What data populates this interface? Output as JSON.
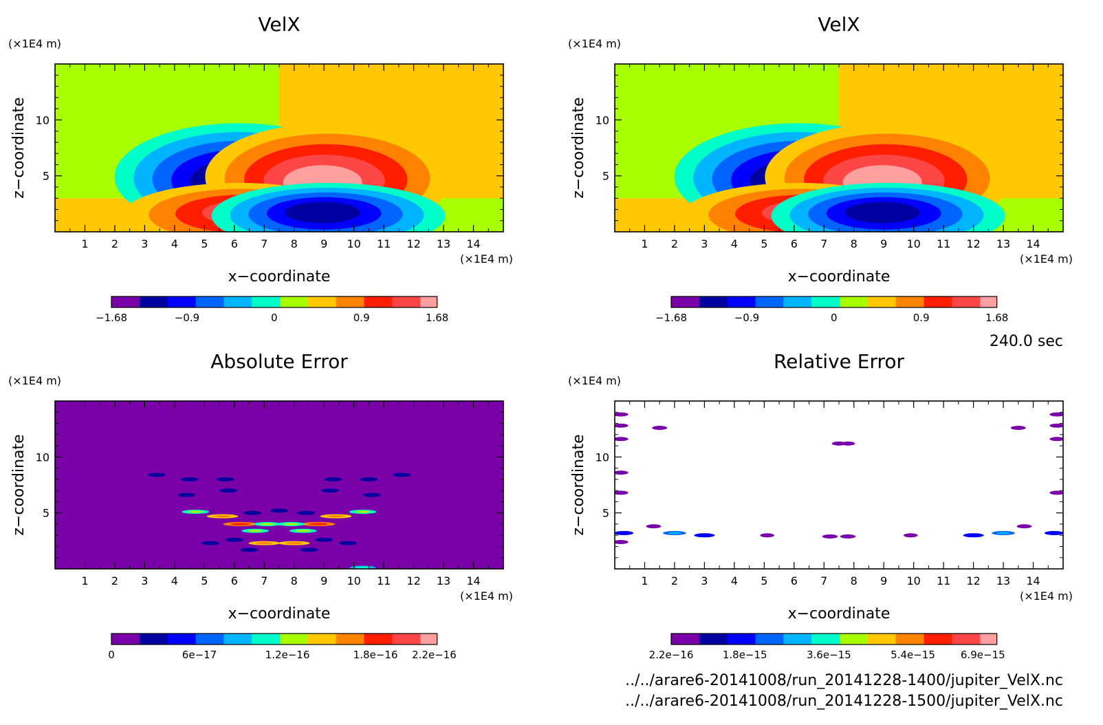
{
  "figure": {
    "time_label": "240.0 sec",
    "file_lines": [
      "../../arare6-20141008/run_20141228-1400/jupiter_VelX.nc",
      "../../arare6-20141008/run_20141228-1500/jupiter_VelX.nc"
    ]
  },
  "colors": {
    "scale": [
      "#7a00a8",
      "#0000a0",
      "#0000ff",
      "#0064ff",
      "#00b4ff",
      "#00ffc8",
      "#a8ff00",
      "#ffc800",
      "#ff8200",
      "#ff1e00",
      "#ff4646",
      "#ffa0a0"
    ],
    "background": "#ffffff",
    "frame": "#000000"
  },
  "chart_data": [
    {
      "type": "heatmap",
      "title": "VelX",
      "xlabel": "x−coordinate",
      "ylabel": "z−coordinate",
      "x_unit": "(×1E4 m)",
      "y_unit": "(×1E4 m)",
      "xlim": [
        0,
        15
      ],
      "ylim": [
        0,
        15
      ],
      "xticks": [
        "1",
        "2",
        "3",
        "4",
        "5",
        "6",
        "7",
        "8",
        "9",
        "10",
        "11",
        "12",
        "13",
        "14"
      ],
      "yticks": [
        "5",
        "10"
      ],
      "colorbar": {
        "labels": [
          "−1.68",
          "−0.9",
          "0",
          "0.9",
          "1.68"
        ],
        "values": [
          -1.68,
          -0.9,
          0,
          0.9,
          1.68
        ],
        "range": [
          -1.68,
          1.68
        ]
      },
      "field": {
        "upper_left_value": 0.0,
        "upper_right_value": 0.3,
        "lower_left_value": 0.3,
        "lower_right_value": 0.0,
        "interface_z": 3.0,
        "divide_x": 7.5,
        "extrema": [
          {
            "x": 6.4,
            "z": 4.3,
            "value": -1.68
          },
          {
            "x": 8.9,
            "z": 4.3,
            "value": 1.68
          },
          {
            "x": 6.4,
            "z": 1.8,
            "value": 1.25
          },
          {
            "x": 8.9,
            "z": 1.8,
            "value": -1.25
          }
        ]
      }
    },
    {
      "type": "heatmap",
      "title": "VelX",
      "xlabel": "x−coordinate",
      "ylabel": "z−coordinate",
      "x_unit": "(×1E4 m)",
      "y_unit": "(×1E4 m)",
      "xlim": [
        0,
        15
      ],
      "ylim": [
        0,
        15
      ],
      "xticks": [
        "1",
        "2",
        "3",
        "4",
        "5",
        "6",
        "7",
        "8",
        "9",
        "10",
        "11",
        "12",
        "13",
        "14"
      ],
      "yticks": [
        "5",
        "10"
      ],
      "colorbar": {
        "labels": [
          "−1.68",
          "−0.9",
          "0",
          "0.9",
          "1.68"
        ],
        "values": [
          -1.68,
          -0.9,
          0,
          0.9,
          1.68
        ],
        "range": [
          -1.68,
          1.68
        ]
      },
      "field": {
        "upper_left_value": 0.0,
        "upper_right_value": 0.3,
        "lower_left_value": 0.3,
        "lower_right_value": 0.0,
        "interface_z": 3.0,
        "divide_x": 7.5,
        "extrema": [
          {
            "x": 6.4,
            "z": 4.3,
            "value": -1.68
          },
          {
            "x": 8.9,
            "z": 4.3,
            "value": 1.68
          },
          {
            "x": 6.4,
            "z": 1.8,
            "value": 1.25
          },
          {
            "x": 8.9,
            "z": 1.8,
            "value": -1.25
          }
        ]
      }
    },
    {
      "type": "heatmap",
      "title": "Absolute Error",
      "xlabel": "x−coordinate",
      "ylabel": "z−coordinate",
      "x_unit": "(×1E4 m)",
      "y_unit": "(×1E4 m)",
      "xlim": [
        0,
        15
      ],
      "ylim": [
        0,
        15
      ],
      "xticks": [
        "1",
        "2",
        "3",
        "4",
        "5",
        "6",
        "7",
        "8",
        "9",
        "10",
        "11",
        "12",
        "13",
        "14"
      ],
      "yticks": [
        "5",
        "10"
      ],
      "colorbar": {
        "labels": [
          "0",
          "6e−17",
          "1.2e−16",
          "1.8e−16",
          "2.2e−16"
        ],
        "values": [
          0,
          6e-17,
          1.2e-16,
          1.8e-16,
          2.2e-16
        ],
        "range": [
          0,
          2.22e-16
        ]
      },
      "field": {
        "background_value": 0,
        "spots": [
          {
            "x": 3.4,
            "z": 8.4,
            "value": 3e-17
          },
          {
            "x": 4.5,
            "z": 8.0,
            "value": 3e-17
          },
          {
            "x": 5.7,
            "z": 8.0,
            "value": 3e-17
          },
          {
            "x": 9.3,
            "z": 8.0,
            "value": 3e-17
          },
          {
            "x": 10.5,
            "z": 8.0,
            "value": 3e-17
          },
          {
            "x": 11.6,
            "z": 8.4,
            "value": 3e-17
          },
          {
            "x": 4.4,
            "z": 6.6,
            "value": 3e-17
          },
          {
            "x": 5.8,
            "z": 7.0,
            "value": 3e-17
          },
          {
            "x": 9.2,
            "z": 7.0,
            "value": 3e-17
          },
          {
            "x": 10.6,
            "z": 6.6,
            "value": 3e-17
          },
          {
            "x": 4.7,
            "z": 5.1,
            "value": 1e-16
          },
          {
            "x": 10.3,
            "z": 5.1,
            "value": 1e-16
          },
          {
            "x": 6.6,
            "z": 5.0,
            "value": 3e-17
          },
          {
            "x": 7.5,
            "z": 5.2,
            "value": 3e-17
          },
          {
            "x": 8.4,
            "z": 5.0,
            "value": 3e-17
          },
          {
            "x": 5.6,
            "z": 4.7,
            "value": 1.3e-16
          },
          {
            "x": 9.4,
            "z": 4.7,
            "value": 1.3e-16
          },
          {
            "x": 6.2,
            "z": 4.0,
            "value": 1.5e-16
          },
          {
            "x": 8.8,
            "z": 4.0,
            "value": 1.5e-16
          },
          {
            "x": 7.1,
            "z": 4.0,
            "value": 1e-16
          },
          {
            "x": 7.9,
            "z": 4.0,
            "value": 1e-16
          },
          {
            "x": 6.7,
            "z": 3.4,
            "value": 1e-16
          },
          {
            "x": 8.3,
            "z": 3.4,
            "value": 1e-16
          },
          {
            "x": 6.0,
            "z": 2.6,
            "value": 3e-17
          },
          {
            "x": 9.0,
            "z": 2.6,
            "value": 3e-17
          },
          {
            "x": 7.0,
            "z": 2.3,
            "value": 1.3e-16
          },
          {
            "x": 8.0,
            "z": 2.3,
            "value": 1.3e-16
          },
          {
            "x": 5.2,
            "z": 2.3,
            "value": 3e-17
          },
          {
            "x": 9.8,
            "z": 2.3,
            "value": 3e-17
          },
          {
            "x": 6.5,
            "z": 1.7,
            "value": 3e-17
          },
          {
            "x": 8.5,
            "z": 1.7,
            "value": 3e-17
          },
          {
            "x": 10.3,
            "z": 0.1,
            "value": 9e-17
          }
        ]
      }
    },
    {
      "type": "heatmap",
      "title": "Relative Error",
      "xlabel": "x−coordinate",
      "ylabel": "z−coordinate",
      "x_unit": "(×1E4 m)",
      "y_unit": "(×1E4 m)",
      "xlim": [
        0,
        15
      ],
      "ylim": [
        0,
        15
      ],
      "xticks": [
        "1",
        "2",
        "3",
        "4",
        "5",
        "6",
        "7",
        "8",
        "9",
        "10",
        "11",
        "12",
        "13",
        "14"
      ],
      "yticks": [
        "5",
        "10"
      ],
      "colorbar": {
        "labels": [
          "2.2e−16",
          "1.8e−15",
          "3.6e−15",
          "5.4e−15",
          "6.9e−15"
        ],
        "values": [
          2.2e-16,
          1.8e-15,
          3.6e-15,
          5.4e-15,
          6.9e-15
        ],
        "range": [
          2.2e-16,
          7.2e-15
        ]
      },
      "field": {
        "background_value": null,
        "spots": [
          {
            "x": 0.2,
            "z": 13.8,
            "value": 5e-16
          },
          {
            "x": 0.2,
            "z": 12.8,
            "value": 5e-16
          },
          {
            "x": 0.2,
            "z": 11.6,
            "value": 5e-16
          },
          {
            "x": 14.8,
            "z": 13.8,
            "value": 5e-16
          },
          {
            "x": 14.8,
            "z": 12.8,
            "value": 5e-16
          },
          {
            "x": 14.8,
            "z": 11.6,
            "value": 5e-16
          },
          {
            "x": 1.5,
            "z": 12.6,
            "value": 5e-16
          },
          {
            "x": 13.5,
            "z": 12.6,
            "value": 5e-16
          },
          {
            "x": 0.2,
            "z": 8.6,
            "value": 5e-16
          },
          {
            "x": 0.2,
            "z": 6.8,
            "value": 5e-16
          },
          {
            "x": 14.8,
            "z": 6.8,
            "value": 5e-16
          },
          {
            "x": 7.5,
            "z": 11.2,
            "value": 3e-16
          },
          {
            "x": 7.8,
            "z": 11.2,
            "value": 3e-16
          },
          {
            "x": 0.3,
            "z": 3.2,
            "value": 1.5e-15
          },
          {
            "x": 14.7,
            "z": 3.2,
            "value": 1.5e-15
          },
          {
            "x": 1.3,
            "z": 3.8,
            "value": 5e-16
          },
          {
            "x": 13.7,
            "z": 3.8,
            "value": 5e-16
          },
          {
            "x": 2.0,
            "z": 3.2,
            "value": 2.4e-15
          },
          {
            "x": 13.0,
            "z": 3.2,
            "value": 2.4e-15
          },
          {
            "x": 3.0,
            "z": 3.0,
            "value": 1.8e-15
          },
          {
            "x": 12.0,
            "z": 3.0,
            "value": 1.8e-15
          },
          {
            "x": 7.2,
            "z": 2.9,
            "value": 6e-16
          },
          {
            "x": 7.8,
            "z": 2.9,
            "value": 6e-16
          },
          {
            "x": 0.2,
            "z": 2.4,
            "value": 5e-16
          },
          {
            "x": 5.1,
            "z": 3.0,
            "value": 3e-16
          },
          {
            "x": 9.9,
            "z": 3.0,
            "value": 3e-16
          }
        ]
      }
    }
  ]
}
